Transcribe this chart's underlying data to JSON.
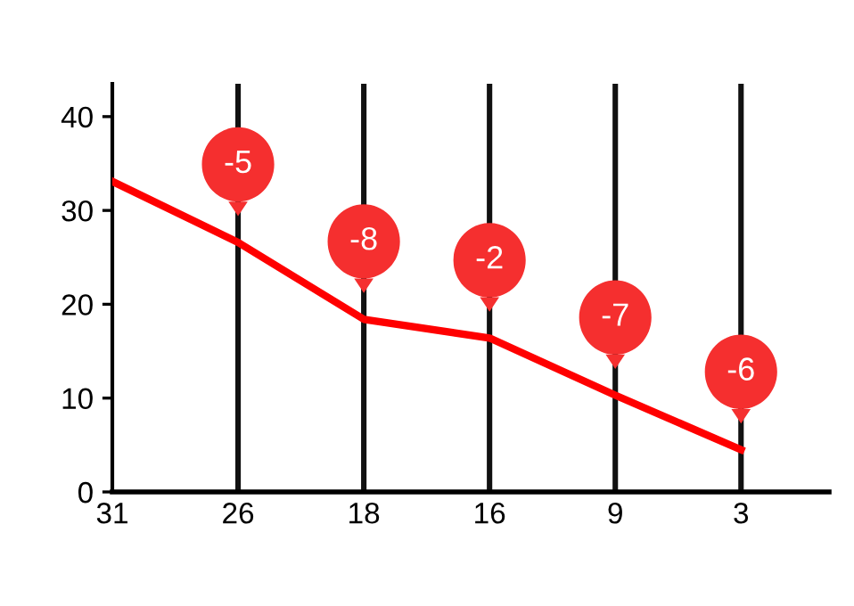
{
  "chart_data": {
    "type": "line",
    "categories": [
      "31",
      "26",
      "18",
      "16",
      "9",
      "3"
    ],
    "series": [
      {
        "color": "#ff0000",
        "values": [
          33.1,
          26.6,
          18.4,
          16.4,
          10.3,
          4.5
        ]
      }
    ],
    "ylim": [
      0,
      43.5
    ],
    "yticks": [
      0,
      10,
      20,
      30,
      40
    ],
    "grid": "x",
    "marker": "none",
    "line_style": "solid",
    "annotations": [
      {
        "text": "-5",
        "x": "26",
        "y": 26.6
      },
      {
        "text": "-8",
        "x": "18",
        "y": 18.4
      },
      {
        "text": "-2",
        "x": "16",
        "y": 16.4
      },
      {
        "text": "-7",
        "x": "9",
        "y": 10.3
      },
      {
        "text": "-6",
        "x": "3",
        "y": 4.5
      }
    ]
  }
}
